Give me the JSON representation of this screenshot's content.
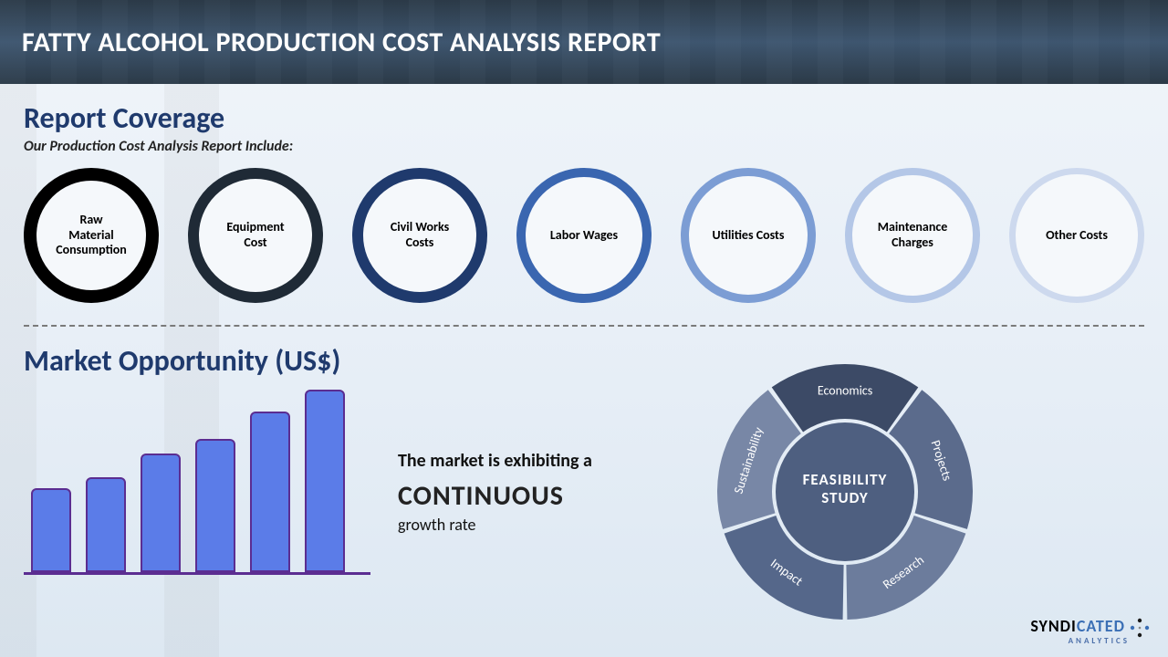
{
  "banner": {
    "title": "FATTY ALCOHOL PRODUCTION COST ANALYSIS REPORT"
  },
  "coverage": {
    "heading": "Report Coverage",
    "subheading": "Our Production Cost Analysis Report Include:",
    "items": [
      {
        "label": "Raw Material Consumption",
        "border_color": "#000000",
        "border_width": 14
      },
      {
        "label": "Equipment Cost",
        "border_color": "#1f2a36",
        "border_width": 12
      },
      {
        "label": "Civil Works Costs",
        "border_color": "#1f3a6d",
        "border_width": 12
      },
      {
        "label": "Labor Wages",
        "border_color": "#3a66b0",
        "border_width": 10
      },
      {
        "label": "Utilities Costs",
        "border_color": "#7c9dd4",
        "border_width": 9
      },
      {
        "label": "Maintenance Charges",
        "border_color": "#b4c7e7",
        "border_width": 8
      },
      {
        "label": "Other Costs",
        "border_color": "#cdd9ee",
        "border_width": 7
      }
    ]
  },
  "opportunity": {
    "heading": "Market Opportunity (US$)",
    "chart": {
      "type": "bar",
      "values": [
        92,
        104,
        130,
        146,
        176,
        200
      ],
      "max": 200,
      "bar_fill": "#5b7ce8",
      "bar_border": "#5b2d91",
      "bar_border_width": 2,
      "axis_color": "#5b2d91"
    },
    "growth": {
      "line1": "The market is exhibiting a",
      "line2": "CONTINUOUS",
      "line3": "growth rate"
    }
  },
  "feasibility": {
    "center_label": "FEASIBILITY STUDY",
    "center_fill": "#4e5f80",
    "center_text_color": "#ffffff",
    "label_color": "#ffffff",
    "label_fontsize": 14,
    "segments": [
      {
        "label": "Economics",
        "color": "#3c4a66"
      },
      {
        "label": "Projects",
        "color": "#5b6b8c"
      },
      {
        "label": "Research",
        "color": "#6c7c9c"
      },
      {
        "label": "Impact",
        "color": "#55678a"
      },
      {
        "label": "Sustainability",
        "color": "#7887a6"
      }
    ],
    "outer_radius": 140,
    "inner_radius": 80,
    "gap_deg": 2
  },
  "brand": {
    "name_dark": "SYNDI",
    "name_blue": "CATED",
    "sub": "ANALYTICS",
    "dark": "#1a1a1a",
    "blue": "#3b6fb5"
  }
}
